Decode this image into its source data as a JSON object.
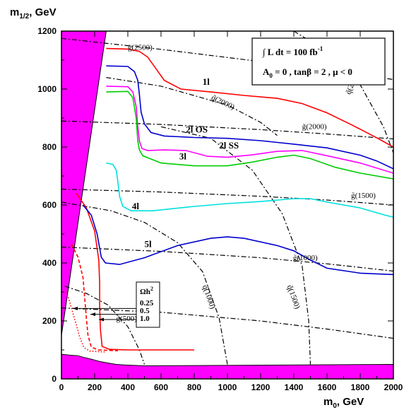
{
  "chart_data": {
    "type": "line",
    "xlabel": "m",
    "xlabel_sub": "0",
    "xlabel_unit": ", GeV",
    "ylabel": "m",
    "ylabel_sub": "1/2",
    "ylabel_unit": ", GeV",
    "xlim": [
      0,
      2000
    ],
    "ylim": [
      0,
      1200
    ],
    "xticks": [
      0,
      200,
      400,
      600,
      800,
      1000,
      1200,
      1400,
      1600,
      1800,
      2000
    ],
    "yticks": [
      0,
      200,
      400,
      600,
      800,
      1000,
      1200
    ],
    "info_box": {
      "line1": "∫ L dt = 100 fb",
      "line1_sup": "-1",
      "line2": "A",
      "line2_sub": "0",
      "line2_rest": " = 0 ,  tanβ = 2 ,  μ < 0"
    },
    "colors": {
      "magenta": "#ff00ff",
      "red": "#ff0000",
      "blue": "#0000cc",
      "green": "#00cc00",
      "cyan": "#00e0e0",
      "black": "#000000"
    },
    "theory_excluded": {
      "color": "#ff00ff",
      "upper_wedge": [
        [
          0,
          150
        ],
        [
          0,
          1200
        ],
        [
          270,
          1200
        ]
      ],
      "bottom_band": [
        [
          0,
          85
        ],
        [
          50,
          82
        ],
        [
          100,
          80
        ],
        [
          130,
          75
        ],
        [
          180,
          68
        ],
        [
          230,
          60
        ],
        [
          280,
          55
        ],
        [
          330,
          50
        ],
        [
          380,
          48
        ],
        [
          500,
          45
        ],
        [
          2000,
          50
        ],
        [
          2000,
          0
        ],
        [
          0,
          0
        ]
      ]
    },
    "series": [
      {
        "name": "1l",
        "color": "#ff0000",
        "label_at": [
          850,
          1015
        ],
        "points": [
          [
            270,
            1140
          ],
          [
            400,
            1138
          ],
          [
            470,
            1130
          ],
          [
            520,
            1110
          ],
          [
            570,
            1070
          ],
          [
            620,
            1030
          ],
          [
            720,
            1000
          ],
          [
            900,
            990
          ],
          [
            1100,
            978
          ],
          [
            1300,
            968
          ],
          [
            1450,
            950
          ],
          [
            1600,
            918
          ],
          [
            1750,
            876
          ],
          [
            1900,
            832
          ],
          [
            2000,
            800
          ]
        ]
      },
      {
        "name": "2l OS",
        "color": "#0000cc",
        "label_at": [
          750,
          850
        ],
        "points": [
          [
            270,
            1080
          ],
          [
            400,
            1078
          ],
          [
            440,
            1060
          ],
          [
            460,
            1030
          ],
          [
            470,
            980
          ],
          [
            480,
            920
          ],
          [
            500,
            880
          ],
          [
            540,
            850
          ],
          [
            620,
            838
          ],
          [
            800,
            833
          ],
          [
            1000,
            830
          ],
          [
            1200,
            822
          ],
          [
            1400,
            810
          ],
          [
            1600,
            797
          ],
          [
            1800,
            772
          ],
          [
            1900,
            752
          ],
          [
            2000,
            725
          ]
        ]
      },
      {
        "name": "2l SS",
        "color": "#ff00ff",
        "label_at": [
          950,
          795
        ],
        "points": [
          [
            270,
            1010
          ],
          [
            400,
            1008
          ],
          [
            430,
            990
          ],
          [
            450,
            940
          ],
          [
            460,
            870
          ],
          [
            470,
            820
          ],
          [
            485,
            795
          ],
          [
            520,
            788
          ],
          [
            620,
            790
          ],
          [
            750,
            788
          ],
          [
            880,
            768
          ],
          [
            1000,
            765
          ],
          [
            1150,
            773
          ],
          [
            1300,
            785
          ],
          [
            1450,
            788
          ],
          [
            1600,
            770
          ],
          [
            1800,
            745
          ],
          [
            2000,
            710
          ]
        ]
      },
      {
        "name": "3l",
        "color": "#00cc00",
        "label_at": [
          710,
          757
        ],
        "points": [
          [
            270,
            990
          ],
          [
            400,
            992
          ],
          [
            430,
            970
          ],
          [
            450,
            900
          ],
          [
            460,
            820
          ],
          [
            470,
            790
          ],
          [
            490,
            770
          ],
          [
            600,
            745
          ],
          [
            800,
            735
          ],
          [
            1000,
            735
          ],
          [
            1150,
            748
          ],
          [
            1300,
            765
          ],
          [
            1400,
            772
          ],
          [
            1500,
            760
          ],
          [
            1650,
            730
          ],
          [
            1800,
            710
          ],
          [
            2000,
            690
          ]
        ]
      },
      {
        "name": "4l",
        "color": "#00e0e0",
        "label_at": [
          425,
          585
        ],
        "points": [
          [
            270,
            745
          ],
          [
            310,
            740
          ],
          [
            330,
            720
          ],
          [
            340,
            680
          ],
          [
            350,
            630
          ],
          [
            370,
            595
          ],
          [
            420,
            580
          ],
          [
            550,
            580
          ],
          [
            800,
            595
          ],
          [
            1000,
            605
          ],
          [
            1200,
            612
          ],
          [
            1400,
            622
          ],
          [
            1500,
            622
          ],
          [
            1600,
            610
          ],
          [
            1800,
            590
          ],
          [
            1950,
            565
          ],
          [
            2000,
            558
          ]
        ]
      },
      {
        "name": "5l",
        "color": "#0000cc",
        "label_at": [
          500,
          455
        ],
        "points": [
          [
            130,
            600
          ],
          [
            180,
            565
          ],
          [
            215,
            500
          ],
          [
            240,
            420
          ],
          [
            265,
            400
          ],
          [
            350,
            395
          ],
          [
            500,
            418
          ],
          [
            700,
            460
          ],
          [
            900,
            485
          ],
          [
            1000,
            490
          ],
          [
            1100,
            485
          ],
          [
            1300,
            460
          ],
          [
            1400,
            442
          ],
          [
            1500,
            410
          ],
          [
            1600,
            382
          ],
          [
            1800,
            365
          ],
          [
            2000,
            360
          ]
        ]
      }
    ],
    "relic_density": {
      "title": "Ωh",
      "title_sup": "2",
      "values": [
        "0.25",
        "0.5",
        "1.0"
      ],
      "label_anchor_x": 500,
      "arrow_targets_y": [
        243,
        223,
        205
      ],
      "curves": [
        {
          "value": "0.25",
          "color": "#ff0000",
          "style": "dotted",
          "points": [
            [
              30,
              300
            ],
            [
              50,
              265
            ],
            [
              70,
              225
            ],
            [
              90,
              185
            ],
            [
              110,
              145
            ],
            [
              135,
              108
            ],
            [
              170,
              96
            ],
            [
              260,
              93
            ]
          ]
        },
        {
          "value": "0.5",
          "color": "#ff0000",
          "style": "dashed",
          "points": [
            [
              60,
              465
            ],
            [
              100,
              420
            ],
            [
              130,
              350
            ],
            [
              140,
              280
            ],
            [
              150,
              210
            ],
            [
              160,
              150
            ],
            [
              180,
              110
            ],
            [
              220,
              100
            ],
            [
              340,
              97
            ]
          ]
        },
        {
          "value": "1.0",
          "color": "#ff0000",
          "style": "solid",
          "points": [
            [
              90,
              640
            ],
            [
              150,
              590
            ],
            [
              200,
              510
            ],
            [
              225,
              410
            ],
            [
              230,
              330
            ],
            [
              230,
              250
            ],
            [
              235,
              170
            ],
            [
              245,
              112
            ],
            [
              290,
              102
            ],
            [
              400,
              100
            ],
            [
              600,
              100
            ],
            [
              800,
              100
            ]
          ]
        }
      ]
    },
    "iso_mass_contours": {
      "gluino": [
        {
          "label": "(2500)",
          "label_at": [
            400,
            1135
          ],
          "points": [
            [
              0,
              1175
            ],
            [
              600,
              1137
            ],
            [
              1200,
              1095
            ],
            [
              1800,
              1050
            ],
            [
              2000,
              1033
            ]
          ]
        },
        {
          "label": "(2000)",
          "label_at": [
            1450,
            862
          ],
          "points": [
            [
              0,
              890
            ],
            [
              600,
              878
            ],
            [
              1200,
              860
            ],
            [
              1600,
              845
            ],
            [
              2000,
              828
            ]
          ]
        },
        {
          "label": "(1500)",
          "label_at": [
            1745,
            625
          ],
          "points": [
            [
              0,
              655
            ],
            [
              600,
              645
            ],
            [
              1200,
              630
            ],
            [
              1600,
              617
            ],
            [
              2000,
              600
            ]
          ]
        },
        {
          "label": "(1000)",
          "label_at": [
            1395,
            410
          ],
          "points": [
            [
              0,
              455
            ],
            [
              600,
              440
            ],
            [
              1200,
              418
            ],
            [
              1600,
              397
            ],
            [
              2000,
              372
            ]
          ]
        },
        {
          "label": "(500)",
          "label_at": [
            330,
            200
          ],
          "points": [
            [
              0,
              245
            ],
            [
              600,
              230
            ],
            [
              1200,
              200
            ],
            [
              1600,
              172
            ],
            [
              2000,
              140
            ]
          ]
        }
      ],
      "squark": [
        {
          "label": "(2000)",
          "label_at": [
            900,
            965
          ],
          "points": [
            [
              270,
              1040
            ],
            [
              600,
              1010
            ],
            [
              1000,
              945
            ],
            [
              1200,
              885
            ],
            [
              1300,
              840
            ]
          ]
        },
        {
          "label": "(2500)",
          "label_at": [
            1740,
            980
          ],
          "points": [
            [
              1400,
              1200
            ],
            [
              1600,
              1130
            ],
            [
              1800,
              1015
            ],
            [
              1940,
              870
            ],
            [
              2000,
              780
            ]
          ]
        },
        {
          "label": "(1000)",
          "label_at": [
            850,
            320
          ],
          "points": [
            [
              0,
              610
            ],
            [
              300,
              580
            ],
            [
              500,
              540
            ],
            [
              700,
              470
            ],
            [
              850,
              370
            ],
            [
              950,
              210
            ],
            [
              1000,
              50
            ]
          ]
        },
        {
          "label": "(1500)",
          "label_at": [
            1360,
            320
          ],
          "points": [
            [
              600,
              870
            ],
            [
              900,
              830
            ],
            [
              1150,
              720
            ],
            [
              1330,
              570
            ],
            [
              1450,
              390
            ],
            [
              1490,
              200
            ],
            [
              1500,
              50
            ]
          ]
        },
        {
          "label": "(500)",
          "label_at": [
            0,
            0
          ],
          "points": [
            [
              20,
              320
            ],
            [
              150,
              295
            ],
            [
              280,
              255
            ],
            [
              400,
              180
            ],
            [
              470,
              100
            ],
            [
              500,
              50
            ]
          ]
        }
      ]
    }
  }
}
